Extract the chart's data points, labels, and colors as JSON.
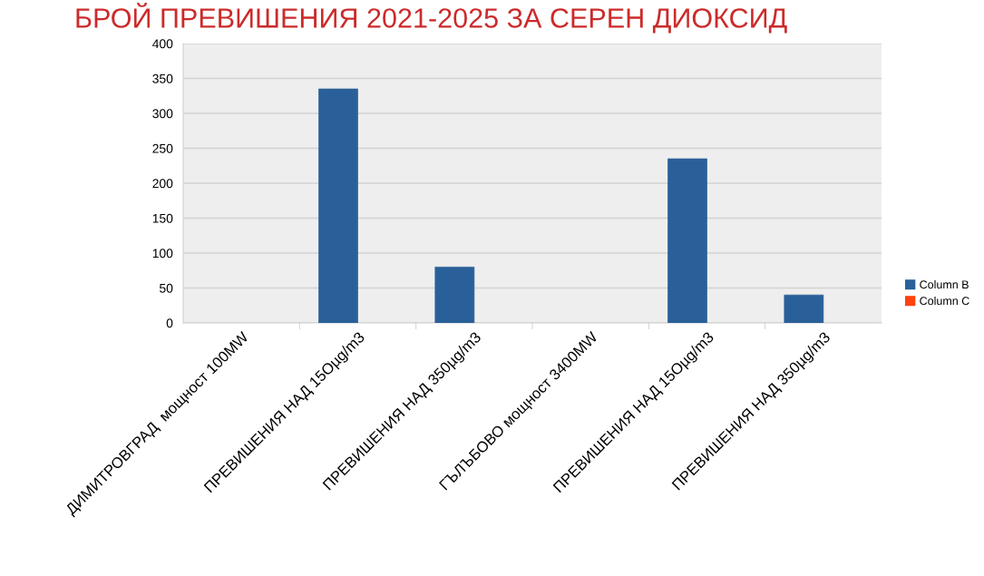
{
  "chart_data": {
    "type": "bar",
    "title": "БРОЙ ПРЕВИШЕНИЯ 2021-2025 ЗА СЕРЕН ДИОКСИД",
    "categories": [
      "ДИМИТРОВГРАД  мощност 100MW",
      "ПРЕВИШЕНИЯ НАД 15Оµg/m3",
      "ПРЕВИШЕНИЯ НАД 350µg/m3",
      "ГЪЛЪБОВО мощност 3400MW",
      "ПРЕВИШЕНИЯ НАД 15Оµg/m3",
      "ПРЕВИШЕНИЯ НАД 350µg/m3"
    ],
    "series": [
      {
        "name": "Column B",
        "color": "#2a6099",
        "values": [
          null,
          335,
          80,
          null,
          235,
          40
        ]
      },
      {
        "name": "Column C",
        "color": "#ff420e",
        "values": [
          null,
          null,
          null,
          null,
          null,
          null
        ]
      }
    ],
    "ylim": [
      0,
      400
    ],
    "yticks": [
      0,
      50,
      100,
      150,
      200,
      250,
      300,
      350,
      400
    ],
    "grid": "y",
    "legend": "right"
  }
}
